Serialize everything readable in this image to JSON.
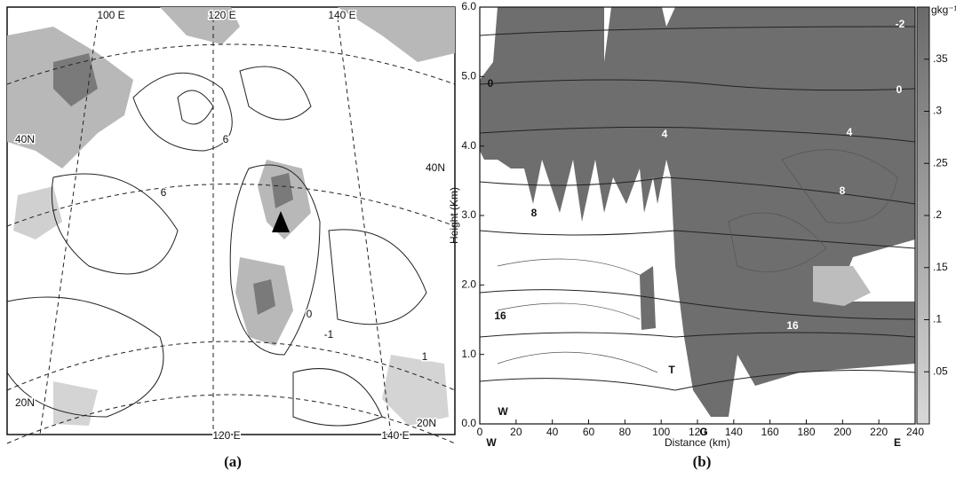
{
  "chart_data": [
    {
      "type": "map",
      "caption": "(a)",
      "labels": [
        "100 E",
        "120 E",
        "140 E",
        "40N",
        "40N",
        "20N",
        "20N",
        "120 E",
        "140 E",
        "6",
        "6",
        "0",
        "-1",
        "1"
      ]
    },
    {
      "type": "contour",
      "caption": "(b)",
      "xlabel": "Distance (km)",
      "ylabel": "Height (Km)",
      "xlim": [
        0,
        240
      ],
      "xticks": [
        0,
        20,
        40,
        60,
        80,
        100,
        120,
        140,
        160,
        180,
        200,
        220,
        240
      ],
      "ylim": [
        0,
        6
      ],
      "yticks": [
        {
          "value": 0,
          "label": "0.0"
        },
        {
          "value": 1,
          "label": "1.0"
        },
        {
          "value": 2,
          "label": "2.0"
        },
        {
          "value": 3,
          "label": "3.0"
        },
        {
          "value": 4,
          "label": "4.0"
        },
        {
          "value": 5,
          "label": "5.0"
        },
        {
          "value": 6,
          "label": "6.0"
        }
      ],
      "colorbar_unit": "gkg⁻¹",
      "colorbar_lim": [
        0,
        0.4
      ],
      "colorbar_ticks": [
        {
          "value": 0.05,
          "label": ".05"
        },
        {
          "value": 0.1,
          "label": ".1"
        },
        {
          "value": 0.15,
          "label": ".15"
        },
        {
          "value": 0.2,
          "label": ".2"
        },
        {
          "value": 0.25,
          "label": ".25"
        },
        {
          "value": 0.3,
          "label": ".3"
        },
        {
          "value": 0.35,
          "label": ".35"
        }
      ],
      "labels": [
        "W",
        "E",
        "G",
        "T",
        "W",
        "0",
        "4",
        "8",
        "16",
        "-2",
        "0",
        "4",
        "8",
        "16"
      ]
    }
  ]
}
